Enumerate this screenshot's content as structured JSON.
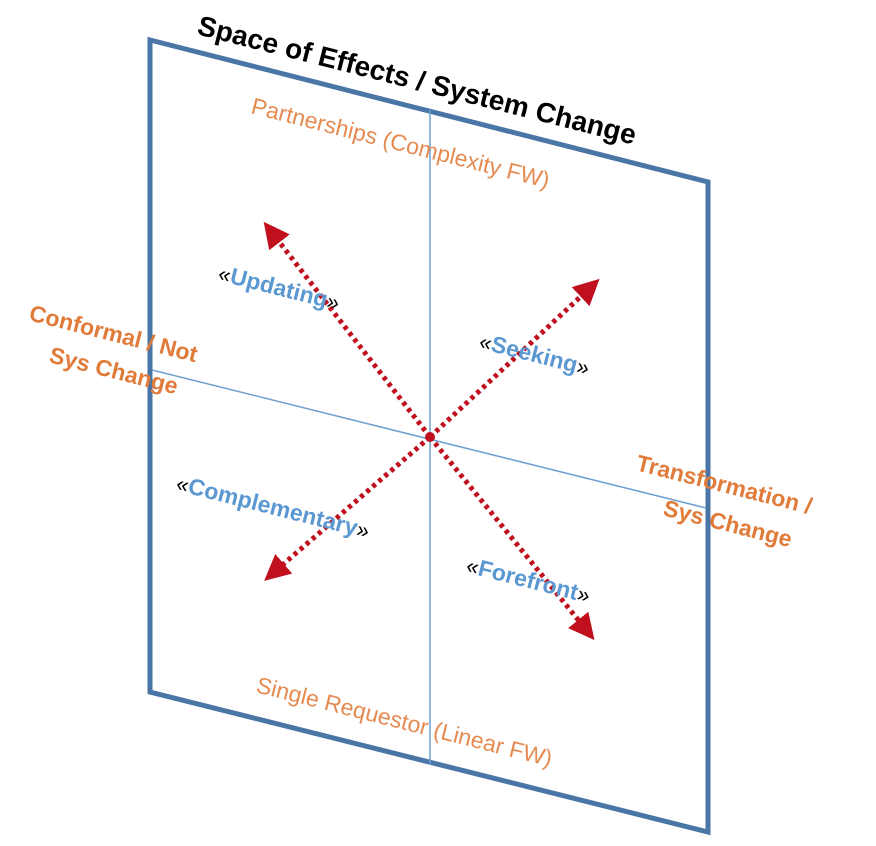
{
  "title": "Space of Effects / System Change",
  "axes": {
    "top": "Partnerships (Complexity FW)",
    "bottom": "Single Requestor (Linear FW)",
    "left": [
      "Conformal / Not",
      "Sys Change"
    ],
    "right": [
      "Transformation /",
      "Sys Change"
    ]
  },
  "quadrants": {
    "updating": "Updating",
    "seeking": "Seeking",
    "complementary": "Complementary",
    "forefront": "Forefront"
  },
  "quote_open": "«",
  "quote_close": "»",
  "colors": {
    "frame": "#4a76a6",
    "axis_line": "#6fa0d0",
    "orange": "#e07b39",
    "orange_light": "#e58a50",
    "blue_text": "#5b97d1",
    "arrow": "#c0101e",
    "title": "#000000"
  }
}
